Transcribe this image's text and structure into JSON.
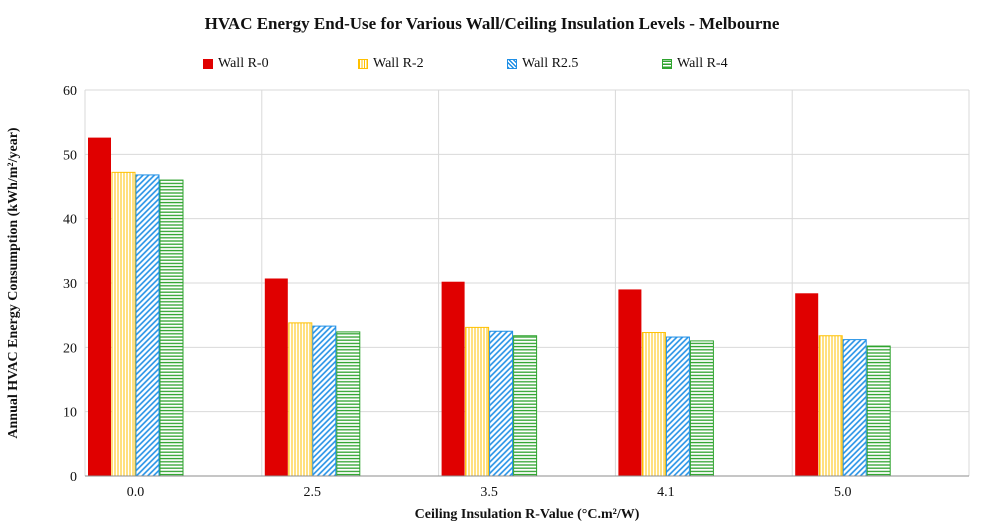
{
  "chart_data": {
    "type": "bar",
    "title": "HVAC Energy End-Use for Various Wall/Ceiling Insulation Levels - Melbourne",
    "xlabel": "Ceiling Insulation  R-Value (°C.m²/W)",
    "ylabel": "Annual HVAC Energy Consumption (kWh/m²/year)",
    "categories": [
      "0.0",
      "2.5",
      "3.5",
      "4.1",
      "5.0"
    ],
    "ylim": [
      0,
      60
    ],
    "yticks": [
      0,
      10,
      20,
      30,
      40,
      50,
      60
    ],
    "grid": true,
    "legend_position": "top",
    "series": [
      {
        "name": "Wall R-0",
        "values": [
          52.6,
          30.7,
          30.2,
          29.0,
          28.4
        ],
        "color": "#e00000",
        "pattern": "solid"
      },
      {
        "name": "Wall R-2",
        "values": [
          47.2,
          23.8,
          23.1,
          22.3,
          21.8
        ],
        "color": "#ffc000",
        "pattern": "vertical"
      },
      {
        "name": "Wall R2.5",
        "values": [
          46.8,
          23.3,
          22.5,
          21.6,
          21.2
        ],
        "color": "#1f8fe6",
        "pattern": "diagonal"
      },
      {
        "name": "Wall R-4",
        "values": [
          46.0,
          22.4,
          21.8,
          21.0,
          20.2
        ],
        "color": "#2ea32e",
        "pattern": "horizontal"
      }
    ]
  }
}
